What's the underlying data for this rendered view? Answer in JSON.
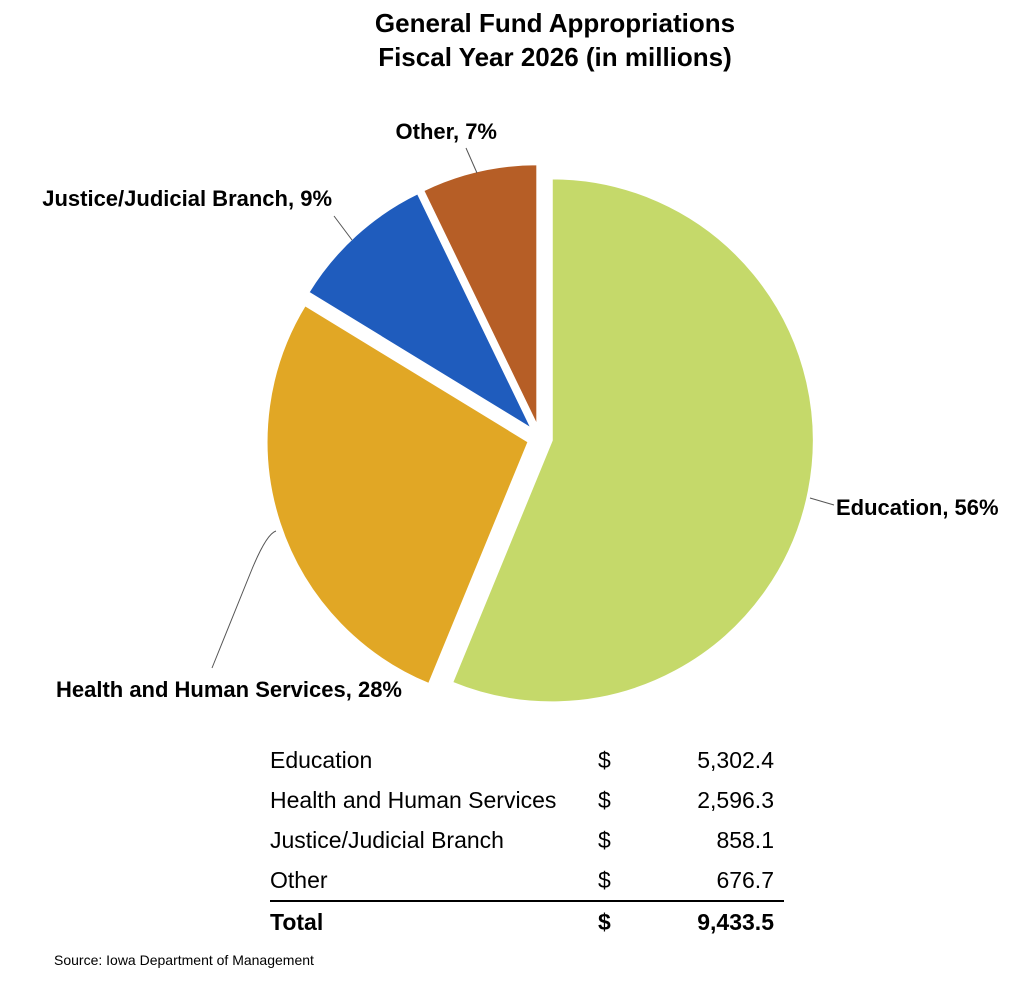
{
  "title_line1": "General Fund Appropriations",
  "title_line2": "Fiscal Year 2026 (in millions)",
  "chart_data": {
    "type": "pie",
    "title": "General Fund Appropriations Fiscal Year 2026 (in millions)",
    "slices": [
      {
        "name": "Education",
        "value": 5302.4,
        "percent": 56,
        "label": "Education, 56%",
        "color": "#c5d96a"
      },
      {
        "name": "Health and Human Services",
        "value": 2596.3,
        "percent": 28,
        "label": "Health and Human Services, 28%",
        "color": "#e1a725"
      },
      {
        "name": "Justice/Judicial Branch",
        "value": 858.1,
        "percent": 9,
        "label": "Justice/Judicial Branch, 9%",
        "color": "#1f5cbd"
      },
      {
        "name": "Other",
        "value": 676.7,
        "percent": 7,
        "label": "Other, 7%",
        "color": "#b65e26"
      }
    ],
    "start": "12 o'clock, clockwise",
    "exploded": true
  },
  "table": {
    "rows": [
      {
        "label": "Education",
        "currency": "$",
        "value": "5,302.4"
      },
      {
        "label": "Health and Human Services",
        "currency": "$",
        "value": "2,596.3"
      },
      {
        "label": "Justice/Judicial Branch",
        "currency": "$",
        "value": "858.1"
      },
      {
        "label": "Other",
        "currency": "$",
        "value": "676.7"
      }
    ],
    "total": {
      "label": "Total",
      "currency": "$",
      "value": "9,433.5"
    }
  },
  "source": "Source: Iowa Department of Management"
}
